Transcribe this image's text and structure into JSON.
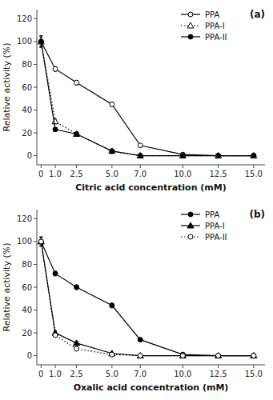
{
  "chart_data": [
    {
      "type": "line",
      "title": "(a)",
      "x_label": "Citric acid concentration (mM)",
      "y_label": "Relative activity (%)",
      "x": [
        0,
        1.0,
        2.5,
        5.0,
        7.0,
        10.0,
        12.5,
        15.0
      ],
      "xlim": [
        -0.3,
        15.8
      ],
      "xticks": [
        0,
        {
          "value": 1.0,
          "label": "1.0"
        },
        {
          "value": 2.5,
          "label": "2.5"
        },
        {
          "value": 5.0,
          "label": "5.0"
        },
        {
          "value": 7.0,
          "label": "7.0"
        },
        {
          "value": 10.0,
          "label": "10.0"
        },
        {
          "value": 12.5,
          "label": "12.5"
        },
        {
          "value": 15.0,
          "label": "15.0"
        }
      ],
      "ylim": [
        -8,
        128
      ],
      "yticks": [
        0,
        20,
        40,
        60,
        80,
        100,
        120
      ],
      "grid": false,
      "legend": "upper right",
      "series": [
        {
          "name": "PPA",
          "color": "black",
          "marker": "open-circle",
          "line_style": "solid",
          "values": [
            100,
            76,
            64,
            45,
            9,
            1,
            0,
            0
          ],
          "errors": [
            5,
            2,
            2,
            2,
            1.5,
            0.5,
            0.3,
            0.3
          ]
        },
        {
          "name": "PPA-I",
          "color": "black",
          "marker": "open-triangle",
          "line_style": "dotted",
          "values": [
            100,
            30,
            19,
            4,
            0,
            0,
            0,
            0
          ],
          "errors": [
            5,
            2,
            1.5,
            1,
            0.5,
            0.3,
            0.3,
            0.3
          ]
        },
        {
          "name": "PPA-II",
          "color": "black",
          "marker": "filled-circle",
          "line_style": "solid",
          "values": [
            100,
            23,
            19,
            4,
            0,
            0,
            0,
            0
          ],
          "errors": [
            4,
            1.5,
            1,
            0.8,
            0.5,
            0.3,
            0.3,
            0.3
          ]
        }
      ]
    },
    {
      "type": "line",
      "title": "(b)",
      "x_label": "Oxalic acid concentration (mM)",
      "y_label": "Relative activity (%)",
      "x": [
        0,
        1.0,
        2.5,
        5.0,
        7.0,
        10.0,
        12.5,
        15.0
      ],
      "xlim": [
        -0.3,
        15.8
      ],
      "xticks": [
        0,
        {
          "value": 1.0,
          "label": "1.0"
        },
        {
          "value": 2.5,
          "label": "2.5"
        },
        {
          "value": 5.0,
          "label": "5.0"
        },
        {
          "value": 7.0,
          "label": "7.0"
        },
        {
          "value": 10.0,
          "label": "10.0"
        },
        {
          "value": 12.5,
          "label": "12.5"
        },
        {
          "value": 15.0,
          "label": "15.0"
        }
      ],
      "ylim": [
        -8,
        128
      ],
      "yticks": [
        0,
        20,
        40,
        60,
        80,
        100,
        120
      ],
      "grid": false,
      "legend": "upper right",
      "series": [
        {
          "name": "PPA",
          "color": "black",
          "marker": "filled-circle",
          "line_style": "solid",
          "values": [
            100,
            72,
            60,
            44,
            14,
            1,
            0,
            0
          ],
          "errors": [
            4,
            2,
            2,
            2,
            1.5,
            0.5,
            0.3,
            0.3
          ]
        },
        {
          "name": "PPA-I",
          "color": "black",
          "marker": "filled-triangle",
          "line_style": "solid",
          "values": [
            100,
            20,
            11,
            2,
            0,
            0,
            0,
            0
          ],
          "errors": [
            4,
            2,
            1.5,
            0.8,
            0.5,
            0.3,
            0.3,
            0.3
          ]
        },
        {
          "name": "PPA-II",
          "color": "black",
          "marker": "open-circle",
          "line_style": "dotted",
          "values": [
            100,
            18,
            6,
            1,
            0,
            0,
            0,
            0
          ],
          "errors": [
            4,
            1.5,
            1,
            0.5,
            0.3,
            0.3,
            0.3,
            0.3
          ]
        }
      ]
    }
  ]
}
